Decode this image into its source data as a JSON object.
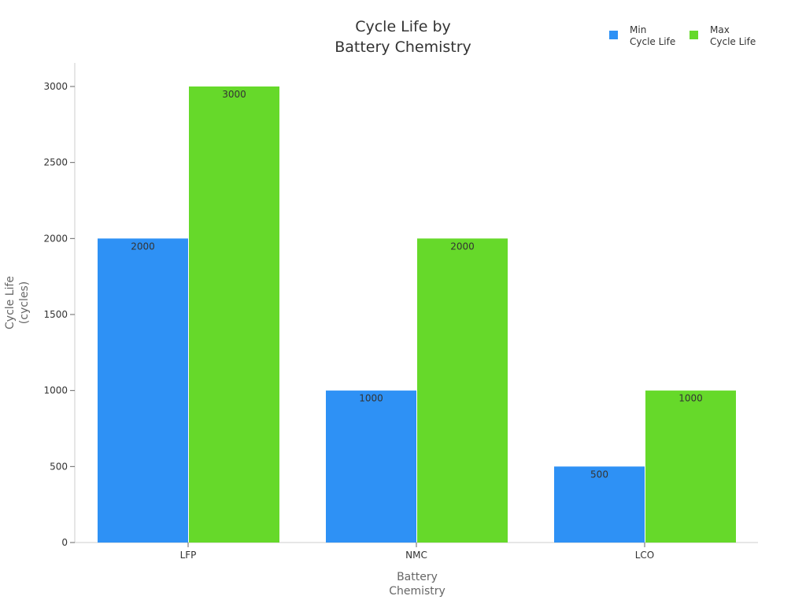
{
  "chart_data": {
    "type": "bar",
    "title": [
      "Cycle Life by",
      "Battery Chemistry"
    ],
    "xlabel": [
      "Battery",
      "Chemistry"
    ],
    "ylabel": [
      "Cycle Life",
      "(cycles)"
    ],
    "categories": [
      "LFP",
      "NMC",
      "LCO"
    ],
    "series": [
      {
        "name": [
          "Min",
          "Cycle Life"
        ],
        "values": [
          2000,
          1000,
          500
        ],
        "color": "#2e91f5"
      },
      {
        "name": [
          "Max",
          "Cycle Life"
        ],
        "values": [
          3000,
          2000,
          1000
        ],
        "color": "#66d92a"
      }
    ],
    "ylim": [
      0,
      3000
    ],
    "yticks": [
      0,
      500,
      1000,
      1500,
      2000,
      2500,
      3000
    ],
    "grid": false,
    "legend": "top-right",
    "data_labels": true
  }
}
